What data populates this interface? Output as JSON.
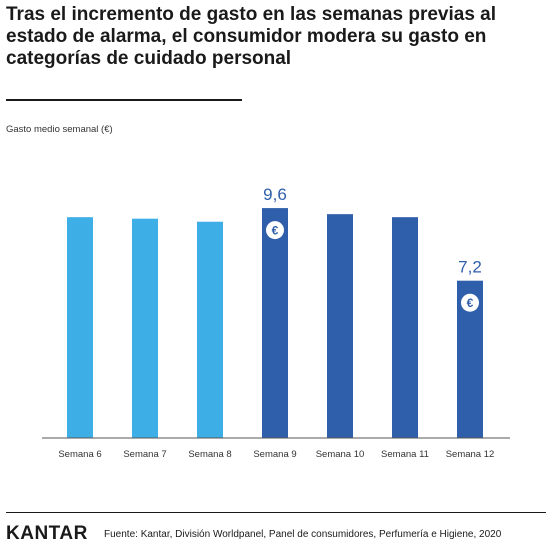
{
  "header": {
    "title": "Tras el incremento de gasto en las semanas previas al estado de alarma, el consumidor modera su gasto en categorías de cuidado personal"
  },
  "footer": {
    "brand": "KANTAR",
    "source": "Fuente: Kantar, División Worldpanel, Panel de consumidores, Perfumería e Higiene, 2020"
  },
  "colors": {
    "pre_alarm": "#3eaee6",
    "post_alarm": "#2f5eaa",
    "label": "#2f5eaa"
  },
  "chart_data": {
    "type": "bar",
    "title": "Tras el incremento de gasto en las semanas previas al estado de alarma, el consumidor modera su gasto en categorías de cuidado personal",
    "ylabel": "Gasto medio semanal (€)",
    "xlabel": "",
    "categories": [
      "Semana 6",
      "Semana 7",
      "Semana 8",
      "Semana 9",
      "Semana 10",
      "Semana 11",
      "Semana 12"
    ],
    "values": [
      9.3,
      9.25,
      9.15,
      9.6,
      9.4,
      9.3,
      7.2
    ],
    "bar_groups": [
      "pre_alarm",
      "pre_alarm",
      "pre_alarm",
      "post_alarm",
      "post_alarm",
      "post_alarm",
      "post_alarm"
    ],
    "data_labels": [
      null,
      null,
      null,
      "9,6",
      null,
      null,
      "7,2"
    ],
    "annotation_icon": "euro-coin-icon",
    "annotation_symbol": "€",
    "ylim": [
      2,
      10
    ],
    "grid": false,
    "legend": "none"
  }
}
